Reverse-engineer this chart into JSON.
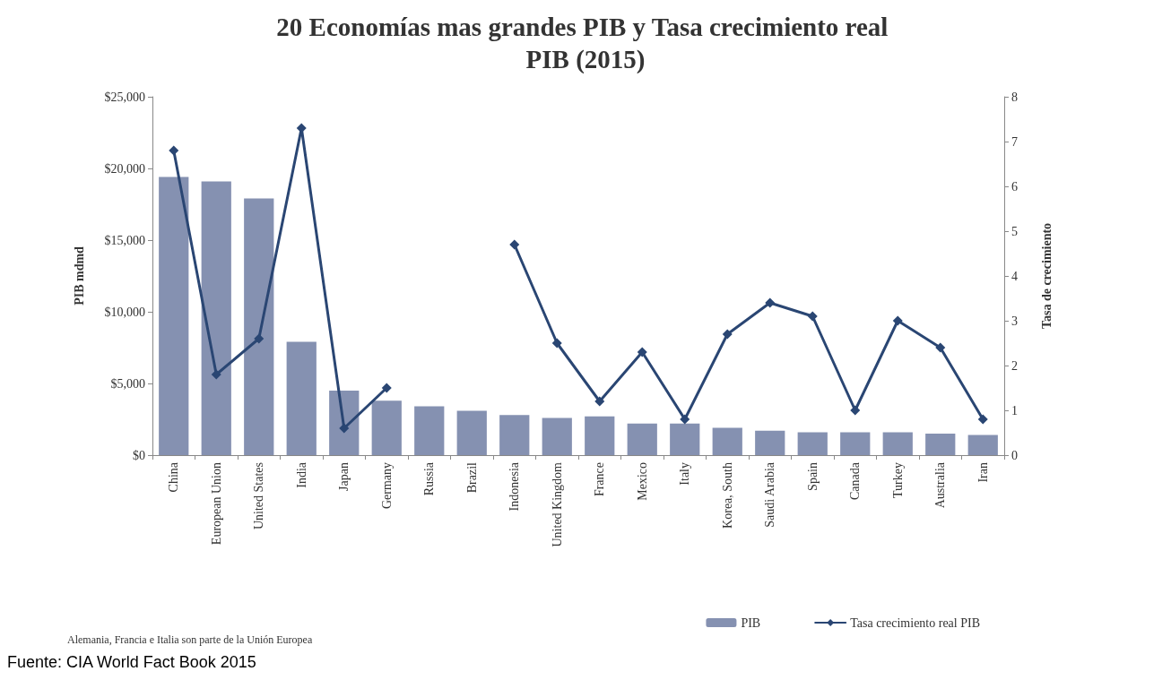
{
  "chart_data": {
    "type": "bar",
    "title": "20 Economías mas grandes PIB y Tasa crecimiento real PIB (2015)",
    "ylabel": "PIB mdmd",
    "y2label": "Tasa de crecimiento",
    "categories": [
      "China",
      "European Union",
      "United States",
      "India",
      "Japan",
      "Germany",
      "Russia",
      "Brazil",
      "Indonesia",
      "United Kingdom",
      "France",
      "Mexico",
      "Italy",
      "Korea, South",
      "Saudi Arabia",
      "Spain",
      "Canada",
      "Turkey",
      "Australia",
      "Iran"
    ],
    "series": [
      {
        "name": "PIB",
        "color": "#8591b1",
        "values": [
          19400,
          19100,
          17900,
          7900,
          4500,
          3800,
          3400,
          3100,
          2800,
          2600,
          2700,
          2200,
          2200,
          1900,
          1700,
          1600,
          1600,
          1600,
          1500,
          1400
        ]
      },
      {
        "name": "Tasa crecimiento real PIB",
        "type": "line",
        "axis": "y2",
        "color": "#2a4673",
        "values": [
          6.8,
          1.8,
          2.6,
          7.3,
          0.6,
          1.5,
          null,
          null,
          4.7,
          2.5,
          1.2,
          2.3,
          0.8,
          2.7,
          3.4,
          3.1,
          1.0,
          3.0,
          2.4,
          0.8
        ]
      }
    ],
    "ylim": [
      0,
      25000
    ],
    "yticks": [
      {
        "value": 0,
        "label": "$0"
      },
      {
        "value": 5000,
        "label": "$5,000"
      },
      {
        "value": 10000,
        "label": "$10,000"
      },
      {
        "value": 15000,
        "label": "$15,000"
      },
      {
        "value": 20000,
        "label": "$20,000"
      },
      {
        "value": 25000,
        "label": "$25,000"
      }
    ],
    "y2lim": [
      0,
      8
    ],
    "y2ticks": [
      0,
      1,
      2,
      3,
      4,
      5,
      6,
      7,
      8
    ],
    "grid": false,
    "legend": "bottom right",
    "marker": "diamond",
    "line_style": "solid",
    "annotations": [
      "Alemania, Francia e Italia son parte de la Unión Europea",
      "Fuente: CIA World Fact Book 2015"
    ]
  }
}
